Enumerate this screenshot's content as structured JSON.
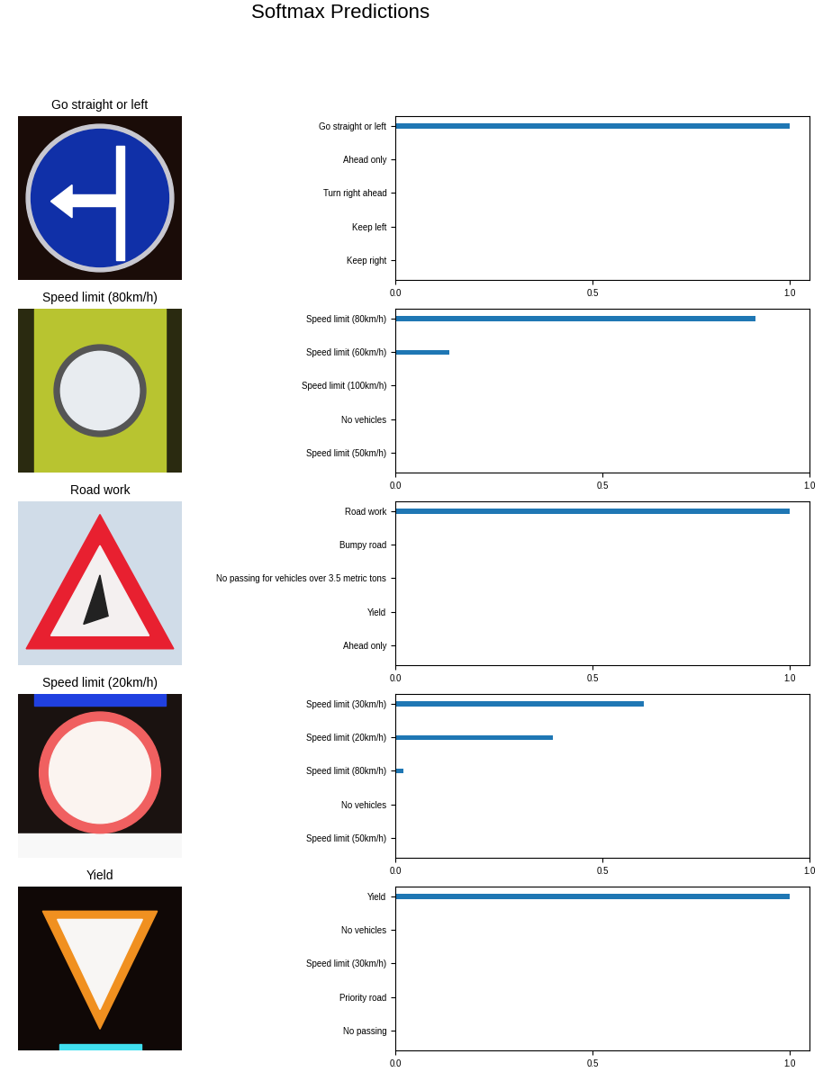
{
  "title": "Softmax Predictions",
  "chart_data": [
    {
      "type": "bar",
      "orientation": "horizontal",
      "image_label": "Go straight or left",
      "categories": [
        "Go straight or left",
        "Ahead only",
        "Turn right ahead",
        "Keep left",
        "Keep right"
      ],
      "values": [
        1.0,
        0,
        0,
        0,
        0
      ],
      "color": "#1f77b4",
      "xlim": [
        0,
        1.05
      ],
      "xticks": [
        {
          "value": 0,
          "label": "0.0"
        },
        {
          "value": 0.5,
          "label": "0.5"
        },
        {
          "value": 1,
          "label": "1.0"
        }
      ]
    },
    {
      "type": "bar",
      "orientation": "horizontal",
      "image_label": "Speed limit (80km/h)",
      "categories": [
        "Speed limit (80km/h)",
        "Speed limit (60km/h)",
        "Speed limit (100km/h)",
        "No vehicles",
        "Speed limit (50km/h)"
      ],
      "values": [
        0.87,
        0.13,
        0,
        0,
        0
      ],
      "color": "#1f77b4",
      "xlim": [
        0,
        1.0
      ],
      "xticks": [
        {
          "value": 0,
          "label": "0.0"
        },
        {
          "value": 0.5,
          "label": "0.5"
        },
        {
          "value": 1,
          "label": "1.0"
        }
      ]
    },
    {
      "type": "bar",
      "orientation": "horizontal",
      "image_label": "Road work",
      "categories": [
        "Road work",
        "Bumpy road",
        "No passing for vehicles over 3.5 metric tons",
        "Yield",
        "Ahead only"
      ],
      "values": [
        1.0,
        0,
        0,
        0,
        0
      ],
      "color": "#1f77b4",
      "xlim": [
        0,
        1.05
      ],
      "xticks": [
        {
          "value": 0,
          "label": "0.0"
        },
        {
          "value": 0.5,
          "label": "0.5"
        },
        {
          "value": 1,
          "label": "1.0"
        }
      ]
    },
    {
      "type": "bar",
      "orientation": "horizontal",
      "image_label": "Speed limit (20km/h)",
      "categories": [
        "Speed limit (30km/h)",
        "Speed limit (20km/h)",
        "Speed limit (80km/h)",
        "No vehicles",
        "Speed limit (50km/h)"
      ],
      "values": [
        0.6,
        0.38,
        0.02,
        0,
        0
      ],
      "color": "#1f77b4",
      "xlim": [
        0,
        1.0
      ],
      "xticks": [
        {
          "value": 0,
          "label": "0.0"
        },
        {
          "value": 0.5,
          "label": "0.5"
        },
        {
          "value": 1,
          "label": "1.0"
        }
      ]
    },
    {
      "type": "bar",
      "orientation": "horizontal",
      "image_label": "Yield",
      "categories": [
        "Yield",
        "No vehicles",
        "Speed limit (30km/h)",
        "Priority road",
        "No passing"
      ],
      "values": [
        1.0,
        0,
        0,
        0,
        0
      ],
      "color": "#1f77b4",
      "xlim": [
        0,
        1.05
      ],
      "xticks": [
        {
          "value": 0,
          "label": "0.0"
        },
        {
          "value": 0.5,
          "label": "0.5"
        },
        {
          "value": 1,
          "label": "1.0"
        }
      ]
    }
  ]
}
